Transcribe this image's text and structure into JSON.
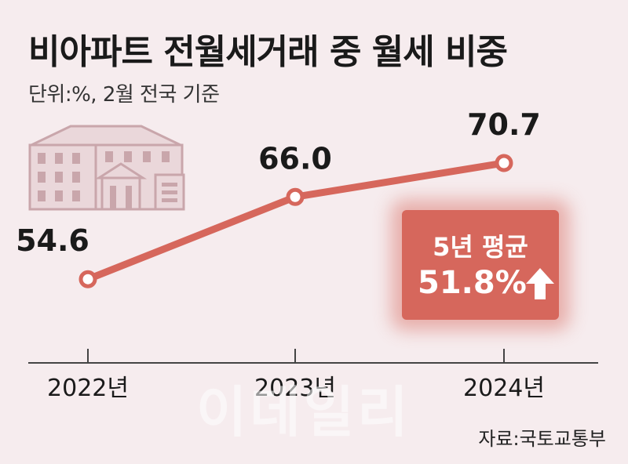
{
  "header": {
    "title": "비아파트 전월세거래 중 월세 비중",
    "subtitle": "단위:%, 2월 전국 기준"
  },
  "badge": {
    "label": "5년 평균",
    "value": "51.8%",
    "icon": "up-arrow-icon"
  },
  "source": "자료:국토교통부",
  "watermark": "이데일리",
  "colors": {
    "background": "#f6ecee",
    "line": "#d6675c",
    "badge": "#d6675c",
    "house": "#c9a6ab"
  },
  "chart_data": {
    "type": "line",
    "categories": [
      "2022년",
      "2023년",
      "2024년"
    ],
    "values": [
      54.6,
      66.0,
      70.7
    ],
    "value_labels": [
      "54.6",
      "66.0",
      "70.7"
    ],
    "title": "비아파트 전월세거래 중 월세 비중",
    "xlabel": "",
    "ylabel": "",
    "ylim": [
      43,
      77
    ],
    "grid": false
  }
}
